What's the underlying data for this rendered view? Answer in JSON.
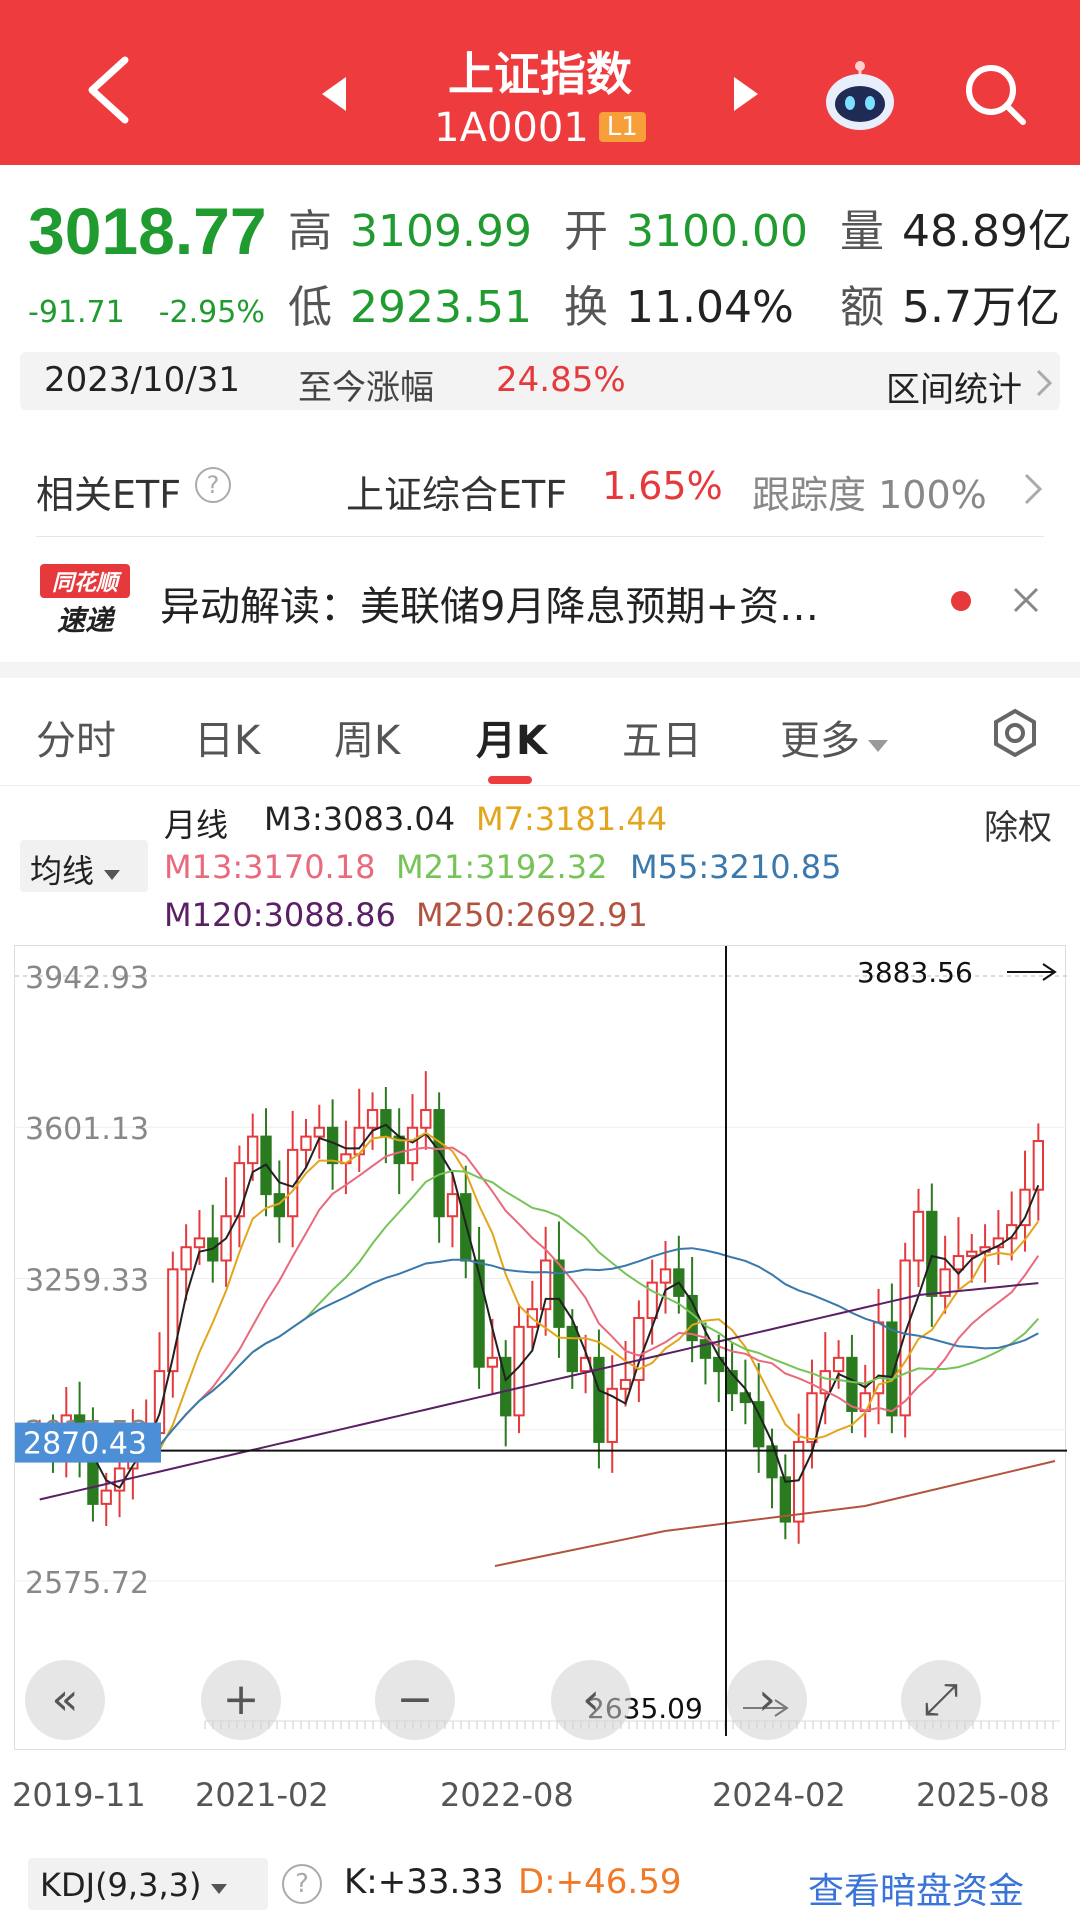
{
  "header": {
    "title": "上证指数",
    "code": "1A0001",
    "level_badge": "L1"
  },
  "quote": {
    "price": "3018.77",
    "change": "-91.71",
    "change_pct": "-2.95%",
    "high_label": "高",
    "high": "3109.99",
    "low_label": "低",
    "low": "2923.51",
    "open_label": "开",
    "open": "3100.00",
    "turnover_label": "换",
    "turnover": "11.04%",
    "volume_label": "量",
    "volume": "48.89亿",
    "amount_label": "额",
    "amount": "5.7万亿"
  },
  "range": {
    "date": "2023/10/31",
    "label": "至今涨幅",
    "pct": "24.85%",
    "stat_button": "区间统计"
  },
  "etf": {
    "label": "相关ETF",
    "name": "上证综合ETF",
    "pct": "1.65%",
    "track_label": "跟踪度",
    "track_value": "100%"
  },
  "news": {
    "logo_top": "同花顺",
    "logo_bottom": "速递",
    "text": "异动解读：美联储9月降息预期+资…"
  },
  "tabs": [
    {
      "label": "分时"
    },
    {
      "label": "日K"
    },
    {
      "label": "周K"
    },
    {
      "label": "月K"
    },
    {
      "label": "五日"
    },
    {
      "label": "更多"
    }
  ],
  "ma": {
    "period_label": "月线",
    "selector_label": "均线",
    "adjust_label": "除权",
    "lines": [
      {
        "name": "M3",
        "value": "M3:3083.04",
        "color": "#222222"
      },
      {
        "name": "M7",
        "value": "M7:3181.44",
        "color": "#e3a51c"
      },
      {
        "name": "M13",
        "value": "M13:3170.18",
        "color": "#e9697d"
      },
      {
        "name": "M21",
        "value": "M21:3192.32",
        "color": "#76c457"
      },
      {
        "name": "M55",
        "value": "M55:3210.85",
        "color": "#3b78ab"
      },
      {
        "name": "M120",
        "value": "M120:3088.86",
        "color": "#5a1f64"
      },
      {
        "name": "M250",
        "value": "M250:2692.91",
        "color": "#b3533f"
      }
    ]
  },
  "chart_data": {
    "type": "candlestick",
    "y_ticks": [
      "3942.93",
      "3601.13",
      "3259.33",
      "2917.52",
      "2575.72"
    ],
    "x_ticks": [
      "2019-11",
      "2021-02",
      "2022-08",
      "2024-02",
      "2025-08"
    ],
    "cursor_value": "2870.43",
    "max_label": "3883.56",
    "min_label": "2635.09",
    "up_color": "#e5393c",
    "down_color": "#2a7a1f"
  },
  "bottom": {
    "kdj_label": "KDJ(9,3,3)",
    "k_value": "K:+33.33",
    "d_value": "D:+46.59",
    "link": "查看暗盘资金"
  }
}
